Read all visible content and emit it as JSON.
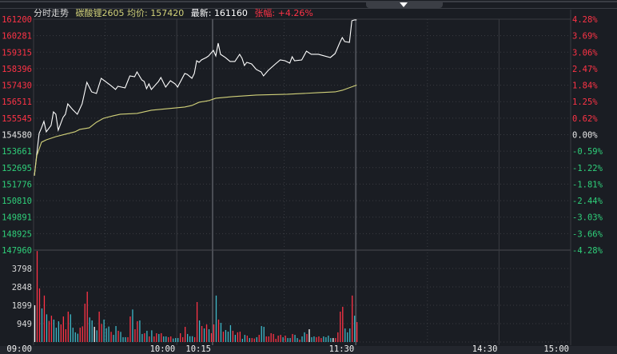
{
  "header": {
    "title": "分时走势",
    "symbol": "碳酸锂2605",
    "avg_label": "均价:",
    "avg_value": "157420",
    "last_label": "最新:",
    "last_value": "161160",
    "change_label": "张幅:",
    "change_value": "+4.26%"
  },
  "colors": {
    "background": "#1a1d23",
    "grid": "#3a3c42",
    "up": "#ff3346",
    "down": "#2fd07a",
    "flat": "#e8e8e8",
    "price_line": "#ffffff",
    "avg_line": "#d2d27a",
    "vol_up": "#ff3346",
    "vol_down": "#3fb8c8",
    "vol_flat": "#ffffff"
  },
  "chart_data": {
    "type": "line",
    "title": "分时走势",
    "xlabel": "",
    "ylabel": "",
    "prev_close": 154580,
    "ylim": [
      147960,
      161200
    ],
    "session_minutes": 225,
    "x_ticks": [
      {
        "label": "09:00",
        "minute": 0
      },
      {
        "label": "10:00",
        "minute": 60
      },
      {
        "label": "10:15",
        "minute": 75
      },
      {
        "label": "11:30",
        "minute": 135
      },
      {
        "label": "14:30",
        "minute": 195
      },
      {
        "label": "15:00",
        "minute": 225
      }
    ],
    "price_ticks": [
      {
        "price": "161200",
        "pct": "4.28%",
        "dir": "up"
      },
      {
        "price": "160281",
        "pct": "3.69%",
        "dir": "up"
      },
      {
        "price": "159315",
        "pct": "3.06%",
        "dir": "up"
      },
      {
        "price": "158396",
        "pct": "2.47%",
        "dir": "up"
      },
      {
        "price": "157430",
        "pct": "1.84%",
        "dir": "up"
      },
      {
        "price": "156511",
        "pct": "1.25%",
        "dir": "up"
      },
      {
        "price": "155545",
        "pct": "0.62%",
        "dir": "up"
      },
      {
        "price": "154580",
        "pct": "0.00%",
        "dir": "flat"
      },
      {
        "price": "153661",
        "pct": "-0.59%",
        "dir": "down"
      },
      {
        "price": "152695",
        "pct": "-1.22%",
        "dir": "down"
      },
      {
        "price": "151776",
        "pct": "-1.81%",
        "dir": "down"
      },
      {
        "price": "150810",
        "pct": "-2.44%",
        "dir": "down"
      },
      {
        "price": "149891",
        "pct": "-3.03%",
        "dir": "down"
      },
      {
        "price": "148925",
        "pct": "-3.66%",
        "dir": "down"
      },
      {
        "price": "147960",
        "pct": "-4.28%",
        "dir": "down"
      }
    ],
    "volume_ticks": [
      "3798",
      "2848",
      "1899",
      "949"
    ],
    "volume_max": 4747,
    "series": [
      {
        "name": "最新",
        "points": [
          [
            0,
            152223
          ],
          [
            1,
            153460
          ],
          [
            2,
            154651
          ],
          [
            3,
            154971
          ],
          [
            4,
            155338
          ],
          [
            5,
            154742
          ],
          [
            7,
            155109
          ],
          [
            8,
            155887
          ],
          [
            9,
            155750
          ],
          [
            10,
            154834
          ],
          [
            12,
            155567
          ],
          [
            13,
            155750
          ],
          [
            14,
            156345
          ],
          [
            16,
            156025
          ],
          [
            18,
            155750
          ],
          [
            20,
            156345
          ],
          [
            22,
            157582
          ],
          [
            24,
            157032
          ],
          [
            26,
            156941
          ],
          [
            28,
            157811
          ],
          [
            32,
            157399
          ],
          [
            34,
            157170
          ],
          [
            35,
            157353
          ],
          [
            38,
            157261
          ],
          [
            40,
            157948
          ],
          [
            42,
            157902
          ],
          [
            43,
            158177
          ],
          [
            45,
            157719
          ],
          [
            46,
            157628
          ],
          [
            47,
            157215
          ],
          [
            48,
            157490
          ],
          [
            49,
            157170
          ],
          [
            52,
            157628
          ],
          [
            53,
            157857
          ],
          [
            55,
            157307
          ],
          [
            57,
            157673
          ],
          [
            59,
            157490
          ],
          [
            60,
            157307
          ],
          [
            63,
            158086
          ],
          [
            64,
            158040
          ],
          [
            66,
            157811
          ],
          [
            67,
            158086
          ],
          [
            68,
            158818
          ],
          [
            69,
            158727
          ],
          [
            70,
            158864
          ],
          [
            72,
            159002
          ],
          [
            73,
            159093
          ],
          [
            75,
            159414
          ],
          [
            76,
            159093
          ],
          [
            77,
            159826
          ],
          [
            78,
            159185
          ],
          [
            80,
            159002
          ],
          [
            82,
            158773
          ],
          [
            84,
            158773
          ],
          [
            86,
            159185
          ],
          [
            87,
            158956
          ],
          [
            88,
            158544
          ],
          [
            89,
            158727
          ],
          [
            91,
            158635
          ],
          [
            93,
            158315
          ],
          [
            95,
            158177
          ],
          [
            96,
            157948
          ],
          [
            98,
            158269
          ],
          [
            101,
            158635
          ],
          [
            103,
            158864
          ],
          [
            105,
            158818
          ],
          [
            107,
            158681
          ],
          [
            108,
            159047
          ],
          [
            109,
            158818
          ],
          [
            112,
            158864
          ],
          [
            114,
            159368
          ],
          [
            116,
            159185
          ],
          [
            119,
            159185
          ],
          [
            124,
            159002
          ],
          [
            126,
            159231
          ],
          [
            128,
            159872
          ],
          [
            129,
            160147
          ],
          [
            130,
            159918
          ],
          [
            132,
            159872
          ],
          [
            133,
            161108
          ],
          [
            134,
            161154
          ],
          [
            135,
            161160
          ]
        ]
      },
      {
        "name": "均价",
        "points": [
          [
            0,
            152223
          ],
          [
            1,
            153368
          ],
          [
            3,
            154147
          ],
          [
            5,
            154284
          ],
          [
            9,
            154467
          ],
          [
            13,
            154605
          ],
          [
            17,
            154742
          ],
          [
            19,
            154880
          ],
          [
            23,
            154971
          ],
          [
            26,
            155292
          ],
          [
            29,
            155521
          ],
          [
            33,
            155658
          ],
          [
            36,
            155750
          ],
          [
            43,
            155796
          ],
          [
            49,
            155979
          ],
          [
            56,
            156070
          ],
          [
            63,
            156162
          ],
          [
            66,
            156254
          ],
          [
            69,
            156437
          ],
          [
            73,
            156528
          ],
          [
            76,
            156666
          ],
          [
            83,
            156757
          ],
          [
            93,
            156849
          ],
          [
            106,
            156895
          ],
          [
            119,
            156986
          ],
          [
            126,
            157032
          ],
          [
            129,
            157124
          ],
          [
            135,
            157420
          ]
        ]
      }
    ],
    "volume": [
      [
        1900,
        "n"
      ],
      [
        4700,
        "u"
      ],
      [
        2770,
        "u"
      ],
      [
        1735,
        "d"
      ],
      [
        2400,
        "u"
      ],
      [
        1430,
        "d"
      ],
      [
        1090,
        "u"
      ],
      [
        1360,
        "u"
      ],
      [
        1160,
        "d"
      ],
      [
        740,
        "d"
      ],
      [
        1070,
        "d"
      ],
      [
        910,
        "u"
      ],
      [
        1320,
        "u"
      ],
      [
        660,
        "u"
      ],
      [
        1570,
        "u"
      ],
      [
        1430,
        "d"
      ],
      [
        740,
        "d"
      ],
      [
        500,
        "d"
      ],
      [
        430,
        "d"
      ],
      [
        740,
        "u"
      ],
      [
        810,
        "u"
      ],
      [
        1980,
        "u"
      ],
      [
        2600,
        "u"
      ],
      [
        1270,
        "d"
      ],
      [
        1115,
        "d"
      ],
      [
        785,
        "n"
      ],
      [
        605,
        "d"
      ],
      [
        1570,
        "u"
      ],
      [
        935,
        "u"
      ],
      [
        1160,
        "d"
      ],
      [
        715,
        "d"
      ],
      [
        800,
        "d"
      ],
      [
        525,
        "u"
      ],
      [
        370,
        "d"
      ],
      [
        825,
        "d"
      ],
      [
        580,
        "u"
      ],
      [
        525,
        "d"
      ],
      [
        250,
        "d"
      ],
      [
        250,
        "d"
      ],
      [
        250,
        "u"
      ],
      [
        1320,
        "u"
      ],
      [
        1680,
        "d"
      ],
      [
        660,
        "u"
      ],
      [
        1075,
        "u"
      ],
      [
        1115,
        "d"
      ],
      [
        415,
        "d"
      ],
      [
        455,
        "u"
      ],
      [
        580,
        "d"
      ],
      [
        290,
        "u"
      ],
      [
        605,
        "d"
      ],
      [
        290,
        "u"
      ],
      [
        455,
        "u"
      ],
      [
        415,
        "d"
      ],
      [
        455,
        "u"
      ],
      [
        290,
        "d"
      ],
      [
        290,
        "d"
      ],
      [
        250,
        "u"
      ],
      [
        290,
        "u"
      ],
      [
        180,
        "d"
      ],
      [
        205,
        "d"
      ],
      [
        205,
        "d"
      ],
      [
        455,
        "u"
      ],
      [
        250,
        "u"
      ],
      [
        785,
        "u"
      ],
      [
        415,
        "d"
      ],
      [
        300,
        "d"
      ],
      [
        300,
        "d"
      ],
      [
        250,
        "u"
      ],
      [
        2065,
        "u"
      ],
      [
        1115,
        "d"
      ],
      [
        825,
        "u"
      ],
      [
        700,
        "d"
      ],
      [
        910,
        "u"
      ],
      [
        660,
        "d"
      ],
      [
        455,
        "u"
      ],
      [
        910,
        "u"
      ],
      [
        2400,
        "d"
      ],
      [
        1160,
        "u"
      ],
      [
        990,
        "d"
      ],
      [
        535,
        "u"
      ],
      [
        620,
        "d"
      ],
      [
        535,
        "d"
      ],
      [
        870,
        "d"
      ],
      [
        580,
        "u"
      ],
      [
        370,
        "d"
      ],
      [
        500,
        "u"
      ],
      [
        535,
        "u"
      ],
      [
        165,
        "d"
      ],
      [
        370,
        "d"
      ],
      [
        330,
        "u"
      ],
      [
        205,
        "d"
      ],
      [
        205,
        "u"
      ],
      [
        180,
        "u"
      ],
      [
        250,
        "d"
      ],
      [
        370,
        "u"
      ],
      [
        825,
        "d"
      ],
      [
        785,
        "d"
      ],
      [
        290,
        "u"
      ],
      [
        290,
        "u"
      ],
      [
        455,
        "u"
      ],
      [
        415,
        "u"
      ],
      [
        165,
        "u"
      ],
      [
        330,
        "u"
      ],
      [
        370,
        "u"
      ],
      [
        250,
        "d"
      ],
      [
        330,
        "u"
      ],
      [
        205,
        "d"
      ],
      [
        205,
        "d"
      ],
      [
        415,
        "u"
      ],
      [
        370,
        "d"
      ],
      [
        205,
        "d"
      ],
      [
        125,
        "u"
      ],
      [
        290,
        "d"
      ],
      [
        500,
        "d"
      ],
      [
        415,
        "u"
      ],
      [
        660,
        "n"
      ],
      [
        250,
        "d"
      ],
      [
        290,
        "d"
      ],
      [
        250,
        "u"
      ],
      [
        290,
        "u"
      ],
      [
        205,
        "u"
      ],
      [
        290,
        "d"
      ],
      [
        250,
        "d"
      ],
      [
        330,
        "d"
      ],
      [
        205,
        "d"
      ],
      [
        205,
        "n"
      ],
      [
        205,
        "u"
      ],
      [
        500,
        "u"
      ],
      [
        1570,
        "u"
      ],
      [
        1820,
        "u"
      ],
      [
        700,
        "d"
      ],
      [
        500,
        "d"
      ],
      [
        700,
        "d"
      ],
      [
        2400,
        "u"
      ],
      [
        1360,
        "d"
      ],
      [
        1030,
        "u"
      ]
    ]
  }
}
